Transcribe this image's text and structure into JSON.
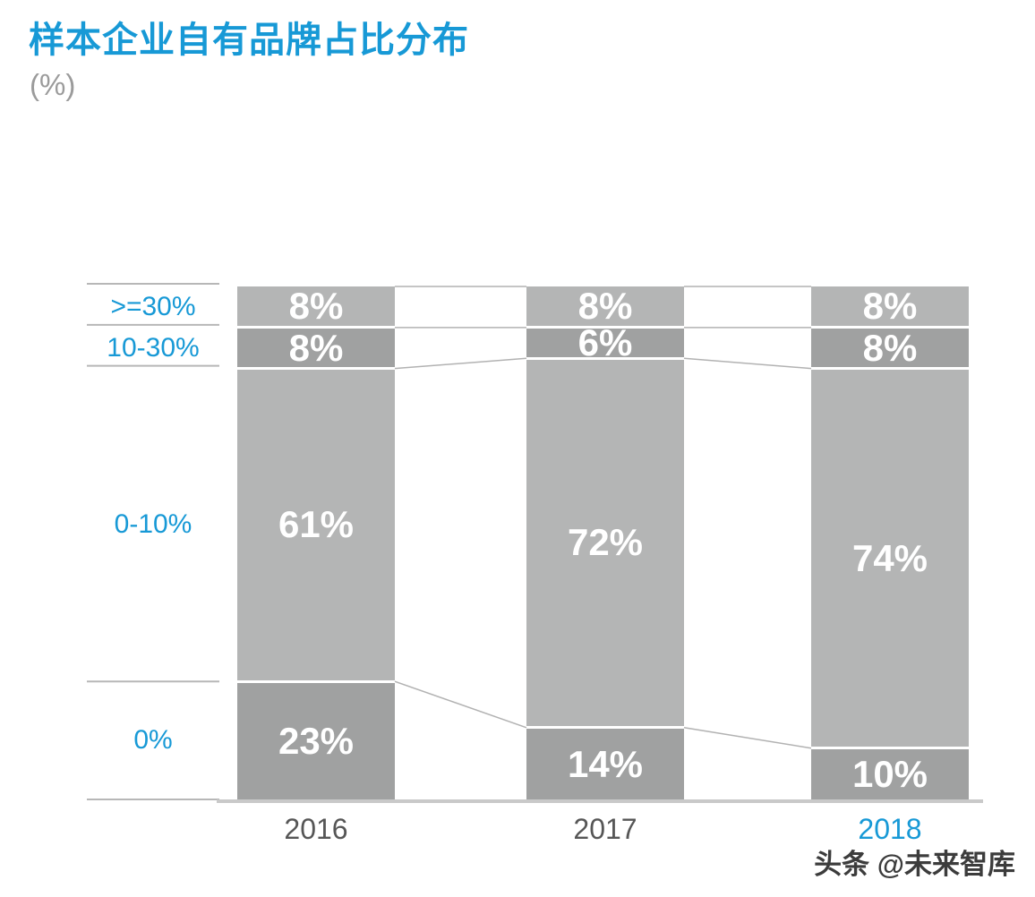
{
  "header": {
    "title": "样本企业自有品牌占比分布",
    "subtitle": "(%)"
  },
  "watermark": "头条 @未来智库",
  "colors": {
    "accent_blue": "#1799d6",
    "segment_light_gray": "#b4b5b5",
    "segment_dark_gray": "#a0a1a1",
    "separator_line": "#b7b7b7",
    "connector_line": "#b2b2b2",
    "baseline": "#c9c9c9",
    "year_label_gray": "#565656",
    "value_label_white": "#ffffff",
    "subtitle_gray": "#9b9b9b"
  },
  "chart_data": {
    "type": "bar",
    "subtype": "stacked-percent-columns",
    "title": "样本企业自有品牌占比分布",
    "unit_label": "(%)",
    "value_suffix": "%",
    "categories": [
      "2016",
      "2017",
      "2018"
    ],
    "highlighted_category": "2018",
    "bands": [
      ">=30%",
      "10-30%",
      "0-10%",
      "0%"
    ],
    "series": [
      {
        "name": ">=30%",
        "shade": "light",
        "values": [
          8,
          8,
          8
        ]
      },
      {
        "name": "10-30%",
        "shade": "dark",
        "values": [
          8,
          6,
          8
        ]
      },
      {
        "name": "0-10%",
        "shade": "light",
        "values": [
          61,
          72,
          74
        ]
      },
      {
        "name": "0%",
        "shade": "dark",
        "values": [
          23,
          14,
          10
        ]
      }
    ],
    "axis": {
      "ylim": [
        0,
        100
      ],
      "grid": false,
      "legend": "none",
      "band_labels_position": "left",
      "connectors_between_columns": true
    }
  }
}
